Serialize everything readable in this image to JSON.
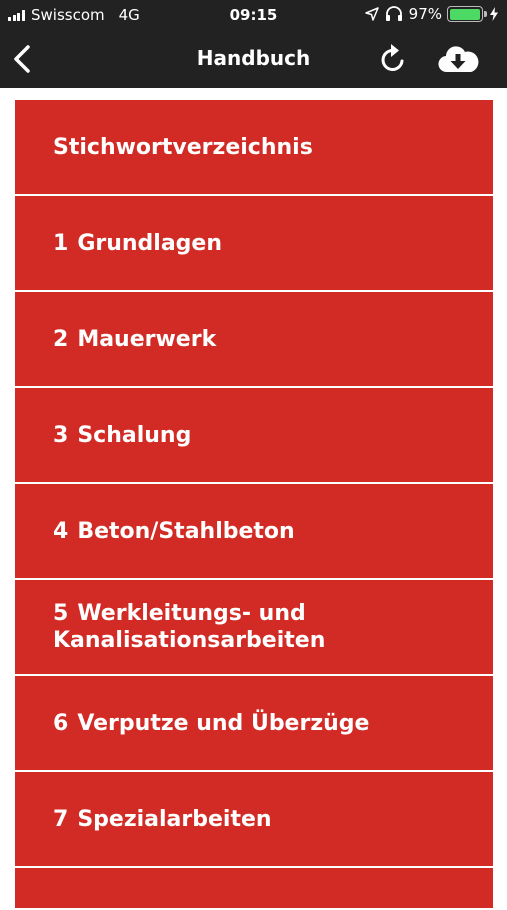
{
  "status_bar": {
    "carrier": "Swisscom",
    "network": "4G",
    "time": "09:15",
    "battery_percent": "97%",
    "battery_level": 0.97
  },
  "nav": {
    "title": "Handbuch",
    "icons": [
      "chevron-left-icon",
      "refresh-icon",
      "cloud-download-icon"
    ]
  },
  "colors": {
    "bar": "#222222",
    "menu_item": "#d22b25",
    "battery": "#4cd964"
  },
  "menu": {
    "items": [
      {
        "num": "",
        "label": "Stichwortverzeichnis"
      },
      {
        "num": "1",
        "label": "Grundlagen"
      },
      {
        "num": "2",
        "label": "Mauerwerk"
      },
      {
        "num": "3",
        "label": "Schalung"
      },
      {
        "num": "4",
        "label": "Beton/Stahlbeton"
      },
      {
        "num": "5",
        "label": "Werkleitungs- und\nKanalisationsarbeiten"
      },
      {
        "num": "6",
        "label": "Verputze und Überzüge"
      },
      {
        "num": "7",
        "label": "Spezialarbeiten"
      }
    ]
  }
}
